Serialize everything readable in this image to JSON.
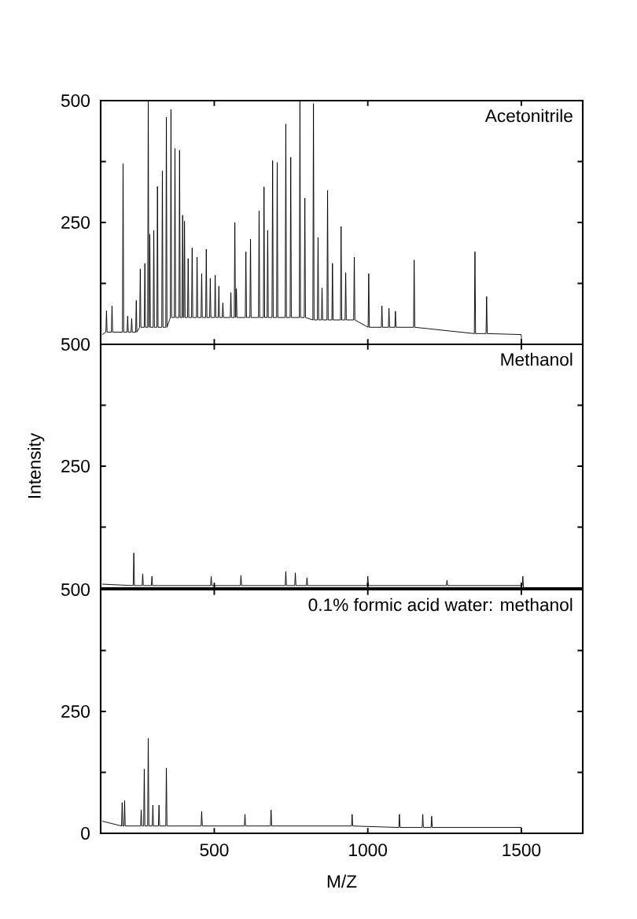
{
  "chart_data": [
    {
      "type": "line",
      "color": "#000000",
      "annotations": [
        "Acetonitrile"
      ],
      "xlim": [
        130,
        1700
      ],
      "xticks": [
        500,
        1000,
        1500
      ],
      "ylim": [
        0,
        500
      ],
      "yticks": [
        {
          "value": 0,
          "label": null
        },
        {
          "value": 125,
          "label": null
        },
        250,
        {
          "value": 375,
          "label": null
        },
        500
      ],
      "tick_labels": "y",
      "x": [
        135,
        147,
        149,
        151,
        165,
        167,
        169,
        201,
        203,
        205,
        216,
        218,
        220,
        229,
        231,
        233,
        244,
        246,
        248,
        257,
        259,
        261,
        272,
        274,
        276,
        283,
        285,
        287,
        288,
        290,
        292,
        301,
        303,
        305,
        313,
        315,
        317,
        329,
        331,
        333,
        342,
        344,
        346,
        357,
        359,
        361,
        370,
        372,
        374,
        385,
        387,
        389,
        395,
        397,
        399,
        401,
        403,
        405,
        413,
        415,
        417,
        426,
        428,
        430,
        442,
        444,
        446,
        457,
        459,
        461,
        472,
        474,
        476,
        485,
        487,
        489,
        501,
        503,
        505,
        513,
        515,
        517,
        526,
        528,
        530,
        552,
        554,
        556,
        565,
        567,
        569,
        570,
        572,
        574,
        601,
        603,
        605,
        616,
        618,
        620,
        644,
        646,
        648,
        660,
        662,
        664,
        672,
        674,
        676,
        688,
        690,
        692,
        703,
        705,
        707,
        731,
        733,
        735,
        747,
        749,
        751,
        777,
        779,
        781,
        793,
        795,
        797,
        821,
        823,
        825,
        836,
        838,
        840,
        849,
        851,
        853,
        867,
        869,
        871,
        883,
        885,
        887,
        911,
        913,
        915,
        926,
        928,
        930,
        954,
        956,
        958,
        1001,
        1003,
        1005,
        1044,
        1046,
        1048,
        1067,
        1069,
        1071,
        1088,
        1090,
        1092,
        1149,
        1151,
        1153,
        1347,
        1349,
        1351,
        1385,
        1387,
        1389,
        1500,
        1501
      ],
      "values": [
        20,
        25,
        69,
        25,
        25,
        79,
        25,
        25,
        371,
        25,
        25,
        58,
        25,
        25,
        53,
        25,
        25,
        90,
        25,
        35,
        155,
        35,
        35,
        166,
        35,
        35,
        500,
        35,
        35,
        226,
        35,
        35,
        234,
        35,
        35,
        324,
        35,
        35,
        356,
        35,
        35,
        466,
        35,
        55,
        482,
        55,
        55,
        402,
        55,
        55,
        398,
        55,
        55,
        265,
        55,
        55,
        253,
        55,
        55,
        176,
        55,
        55,
        198,
        55,
        55,
        179,
        55,
        55,
        145,
        55,
        55,
        195,
        55,
        55,
        135,
        55,
        55,
        142,
        55,
        55,
        119,
        55,
        55,
        85,
        55,
        55,
        106,
        55,
        55,
        250,
        55,
        55,
        114,
        55,
        55,
        190,
        55,
        55,
        216,
        55,
        55,
        274,
        55,
        55,
        323,
        55,
        55,
        234,
        55,
        55,
        377,
        55,
        55,
        373,
        55,
        55,
        452,
        55,
        55,
        384,
        55,
        55,
        500,
        55,
        55,
        300,
        55,
        50,
        494,
        50,
        50,
        219,
        50,
        50,
        116,
        50,
        50,
        316,
        50,
        50,
        166,
        50,
        50,
        242,
        50,
        50,
        147,
        50,
        50,
        179,
        50,
        35,
        145,
        35,
        35,
        79,
        35,
        35,
        74,
        35,
        35,
        68,
        35,
        35,
        173,
        35,
        22,
        190,
        22,
        22,
        98,
        22,
        20,
        0
      ]
    },
    {
      "type": "line",
      "color": "#000000",
      "ylabel": "Intensity",
      "annotations": [
        "Methanol"
      ],
      "xlim": [
        130,
        1700
      ],
      "xticks": [
        500,
        1000,
        1500
      ],
      "ylim": [
        0,
        500
      ],
      "yticks": [
        {
          "value": 0,
          "label": null
        },
        {
          "value": 125,
          "label": null
        },
        250,
        {
          "value": 375,
          "label": null
        },
        500
      ],
      "tick_labels": "y",
      "x": [
        135,
        236,
        238,
        240,
        265,
        267,
        269,
        295,
        297,
        299,
        488,
        490,
        492,
        585,
        587,
        589,
        731,
        733,
        735,
        762,
        764,
        766,
        800,
        802,
        804,
        998,
        1000,
        1002,
        1256,
        1258,
        1260,
        1503,
        1505,
        1507
      ],
      "values": [
        8,
        5,
        72,
        5,
        5,
        29,
        5,
        5,
        24,
        5,
        5,
        24,
        5,
        5,
        26,
        5,
        5,
        34,
        5,
        5,
        31,
        5,
        5,
        21,
        5,
        5,
        24,
        5,
        5,
        16,
        5,
        5,
        24,
        0
      ]
    },
    {
      "type": "line",
      "color": "#000000",
      "xlabel": "M/Z",
      "annotations": [
        "0.1% formic acid water: methanol"
      ],
      "xlim": [
        130,
        1700
      ],
      "xticks": [
        500,
        1000,
        1500
      ],
      "ylim": [
        0,
        500
      ],
      "yticks": [
        0,
        {
          "value": 125,
          "label": null
        },
        250,
        {
          "value": 375,
          "label": null
        },
        500
      ],
      "x": [
        135,
        198,
        200,
        202,
        206,
        208,
        210,
        260,
        262,
        264,
        270,
        272,
        274,
        283,
        285,
        287,
        298,
        300,
        302,
        318,
        320,
        322,
        342,
        344,
        346,
        457,
        459,
        461,
        598,
        600,
        602,
        683,
        685,
        687,
        947,
        949,
        951,
        1101,
        1103,
        1105,
        1177,
        1179,
        1181,
        1206,
        1208,
        1210,
        1500,
        1501
      ],
      "values": [
        25,
        15,
        63,
        15,
        15,
        67,
        15,
        15,
        48,
        15,
        15,
        132,
        15,
        15,
        195,
        15,
        15,
        58,
        15,
        15,
        58,
        15,
        15,
        134,
        15,
        15,
        45,
        15,
        15,
        39,
        15,
        15,
        48,
        15,
        15,
        39,
        15,
        12,
        39,
        12,
        12,
        39,
        12,
        12,
        35,
        12,
        12,
        0
      ]
    }
  ]
}
